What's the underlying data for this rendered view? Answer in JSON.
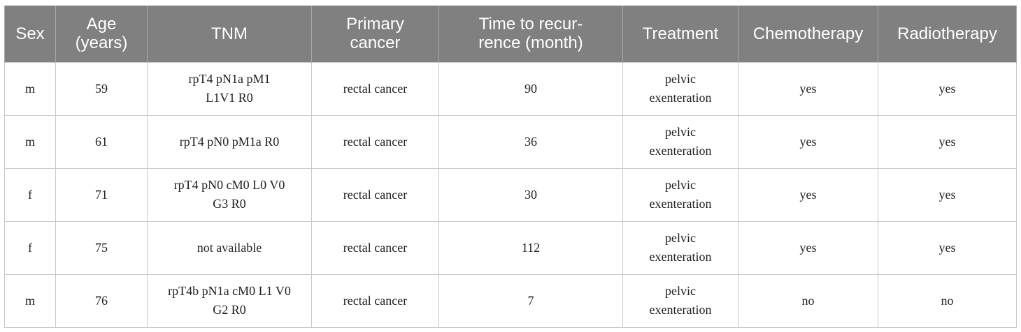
{
  "table": {
    "headers": [
      [
        "Sex"
      ],
      [
        "Age",
        "(years)"
      ],
      [
        "TNM"
      ],
      [
        "Primary",
        "cancer"
      ],
      [
        "Time to recur-",
        "rence (month)"
      ],
      [
        "Treatment"
      ],
      [
        "Chemotherapy"
      ],
      [
        "Radiotherapy"
      ]
    ],
    "rows": [
      {
        "sex": "m",
        "age": "59",
        "tnm": [
          "rpT4 pN1a pM1",
          "L1V1 R0"
        ],
        "primary": "rectal cancer",
        "time": "90",
        "treatment": [
          "pelvic",
          "exenteration"
        ],
        "chemo": "yes",
        "radio": "yes"
      },
      {
        "sex": "m",
        "age": "61",
        "tnm": [
          "rpT4 pN0 pM1a R0"
        ],
        "primary": "rectal cancer",
        "time": "36",
        "treatment": [
          "pelvic",
          "exenteration"
        ],
        "chemo": "yes",
        "radio": "yes"
      },
      {
        "sex": "f",
        "age": "71",
        "tnm": [
          "rpT4 pN0 cM0 L0 V0",
          "G3 R0"
        ],
        "primary": "rectal cancer",
        "time": "30",
        "treatment": [
          "pelvic",
          "exenteration"
        ],
        "chemo": "yes",
        "radio": "yes"
      },
      {
        "sex": "f",
        "age": "75",
        "tnm": [
          "not available"
        ],
        "primary": "rectal cancer",
        "time": "112",
        "treatment": [
          "pelvic",
          "exenteration"
        ],
        "chemo": "yes",
        "radio": "yes"
      },
      {
        "sex": "m",
        "age": "76",
        "tnm": [
          "rpT4b pN1a cM0 L1 V0",
          "G2 R0"
        ],
        "primary": "rectal cancer",
        "time": "7",
        "treatment": [
          "pelvic",
          "exenteration"
        ],
        "chemo": "no",
        "radio": "no"
      }
    ]
  }
}
